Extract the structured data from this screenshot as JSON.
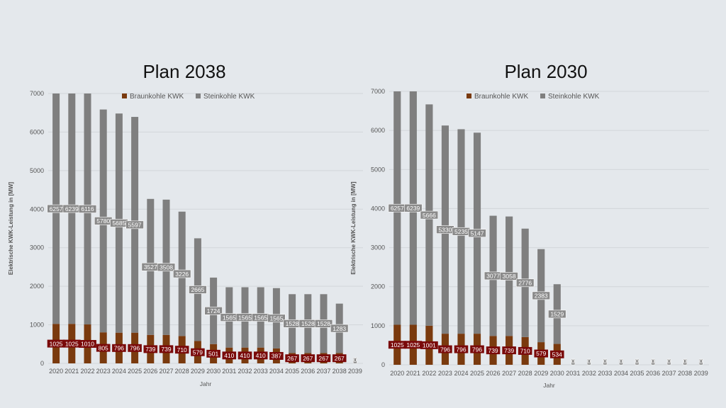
{
  "colors": {
    "braunkohle": "#7a3a0e",
    "steinkohle": "#7f7f7f",
    "label_braun_bg": "#7a0a0a",
    "label_stein_bg": "#8a8a8a",
    "grid": "#d2d6da"
  },
  "chart_data": [
    {
      "type": "bar",
      "stacked": true,
      "title": "Plan 2038",
      "xlabel": "Jahr",
      "ylabel": "Elektrische KWK-Leistung in [MW]",
      "ylim": [
        0,
        7000
      ],
      "yticks": [
        0,
        1000,
        2000,
        3000,
        4000,
        5000,
        6000,
        7000
      ],
      "grid": true,
      "legend_position": "top",
      "categories": [
        "2020",
        "2021",
        "2022",
        "2023",
        "2024",
        "2025",
        "2026",
        "2027",
        "2028",
        "2029",
        "2030",
        "2031",
        "2032",
        "2033",
        "2034",
        "2035",
        "2036",
        "2037",
        "2038",
        "2039"
      ],
      "series": [
        {
          "name": "Braunkohle KWK",
          "values": [
            1025,
            1025,
            1010,
            805,
            796,
            796,
            739,
            739,
            710,
            579,
            501,
            410,
            410,
            410,
            387,
            267,
            267,
            267,
            267,
            0
          ]
        },
        {
          "name": "Steinkohle KWK",
          "values": [
            6257,
            6239,
            6116,
            5780,
            5685,
            5597,
            3527,
            3508,
            3226,
            2665,
            1724,
            1565,
            1565,
            1565,
            1565,
            1528,
            1528,
            1528,
            1283,
            0
          ]
        }
      ]
    },
    {
      "type": "bar",
      "stacked": true,
      "title": "Plan 2030",
      "xlabel": "Jahr",
      "ylabel": "Elektrische KWK-Leistung in [MW]",
      "ylim": [
        0,
        7000
      ],
      "yticks": [
        0,
        1000,
        2000,
        3000,
        4000,
        5000,
        6000,
        7000
      ],
      "grid": true,
      "legend_position": "top",
      "categories": [
        "2020",
        "2021",
        "2022",
        "2023",
        "2024",
        "2025",
        "2026",
        "2027",
        "2028",
        "2029",
        "2030",
        "2031",
        "2032",
        "2033",
        "2034",
        "2035",
        "2036",
        "2037",
        "2038",
        "2039"
      ],
      "series": [
        {
          "name": "Braunkohle KWK",
          "values": [
            1025,
            1025,
            1001,
            796,
            796,
            796,
            739,
            739,
            710,
            579,
            534,
            0,
            0,
            0,
            0,
            0,
            0,
            0,
            0,
            0
          ]
        },
        {
          "name": "Steinkohle KWK",
          "values": [
            6257,
            6239,
            5666,
            5330,
            5235,
            5147,
            3077,
            3058,
            2776,
            2383,
            1529,
            0,
            0,
            0,
            0,
            0,
            0,
            0,
            0,
            0
          ]
        }
      ]
    }
  ]
}
